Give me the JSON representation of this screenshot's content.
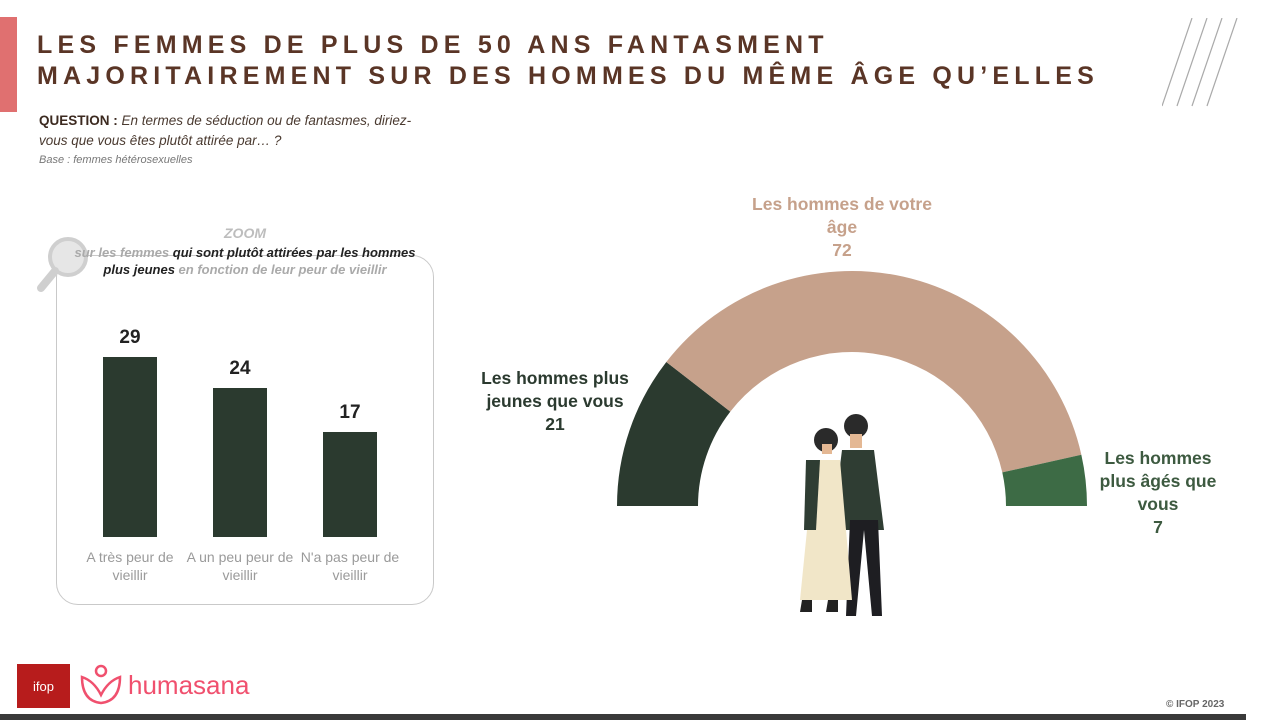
{
  "title": "LES FEMMES DE PLUS DE 50 ANS FANTASMENT\nMAJORITAIREMENT SUR DES HOMMES DU MÊME ÂGE QU’ELLES",
  "question_label": "QUESTION :",
  "question_text": "En termes de séduction ou de fantasmes, diriez-vous que vous êtes plutôt attirée par… ?",
  "base": "Base : femmes hétérosexuelles",
  "zoom": {
    "title": "ZOOM",
    "t1": "sur les femmes ",
    "t2": "qui sont plutôt attirées par les hommes plus jeunes",
    "t3": " en fonction de leur peur de vieillir"
  },
  "footer": {
    "logo1": "ifop",
    "logo2": "humasana",
    "copyright": "© IFOP 2023"
  },
  "colors": {
    "dark": "#2b3a2f",
    "tan": "#c6a18b",
    "green": "#3d6b45"
  },
  "chart_data": [
    {
      "type": "bar",
      "categories": [
        "A très peur de vieillir",
        "A un peu peur de vieillir",
        "N'a pas peur de vieillir"
      ],
      "values": [
        29,
        24,
        17
      ],
      "ylim": [
        0,
        30
      ]
    },
    {
      "type": "pie",
      "variant": "semi-donut",
      "labels": [
        "Les hommes plus jeunes que vous",
        "Les hommes de votre âge",
        "Les hommes plus âgés que vous"
      ],
      "values": [
        21,
        72,
        7
      ]
    }
  ]
}
